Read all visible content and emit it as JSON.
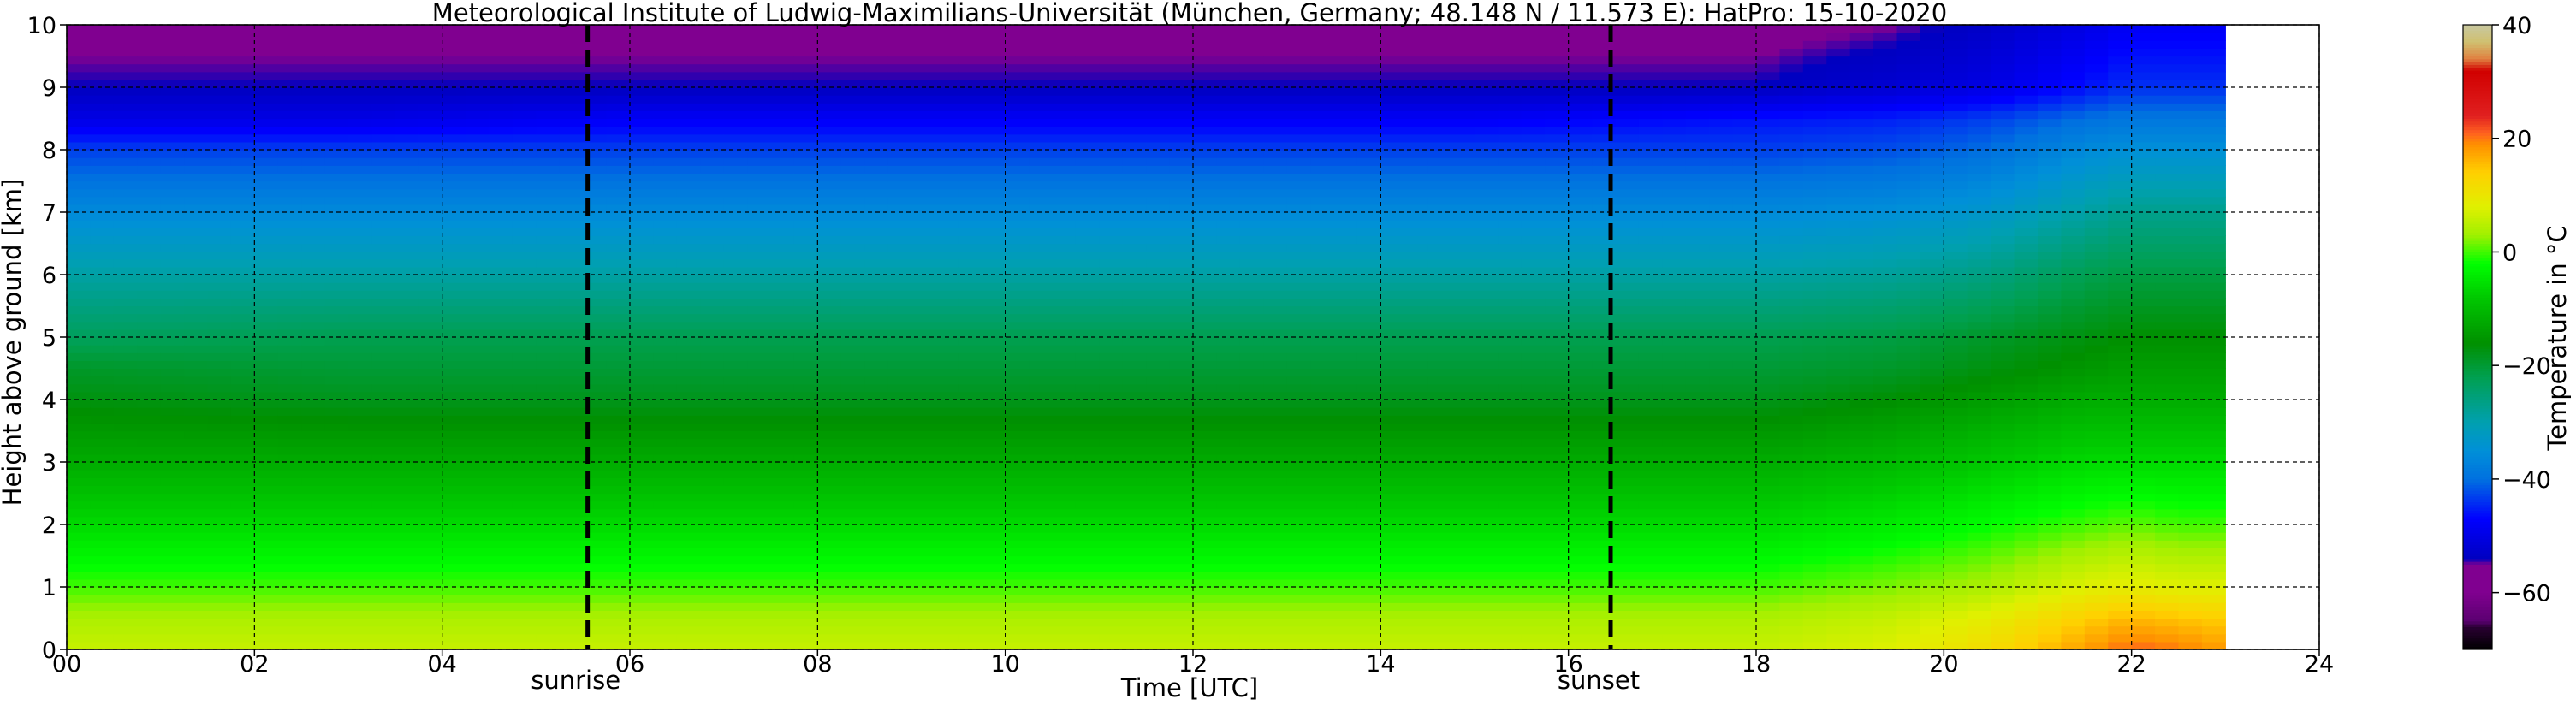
{
  "chart_data": {
    "type": "heatmap",
    "title": "Meteorological Institute of Ludwig-Maximilians-Universität (München, Germany; 48.148 N / 11.573 E):    HatPro: 15-10-2020",
    "xlabel": "Time [UTC]",
    "ylabel": "Height above ground [km]",
    "xlim": [
      0,
      24
    ],
    "ylim": [
      0,
      10
    ],
    "x_ticks": [
      0,
      2,
      4,
      6,
      8,
      10,
      12,
      14,
      16,
      18,
      20,
      22,
      24
    ],
    "x_tick_labels": [
      "00",
      "02",
      "04",
      "06",
      "08",
      "10",
      "12",
      "14",
      "16",
      "18",
      "20",
      "22",
      "24"
    ],
    "y_ticks": [
      0,
      1,
      2,
      3,
      4,
      5,
      6,
      7,
      8,
      9,
      10
    ],
    "y_tick_labels": [
      "0",
      "1",
      "2",
      "3",
      "4",
      "5",
      "6",
      "7",
      "8",
      "9",
      "10"
    ],
    "grid": true,
    "data_x_end": 23.0,
    "events": [
      {
        "label": "sunrise",
        "time": 5.55
      },
      {
        "label": "sunset",
        "time": 16.45
      }
    ],
    "colorbar": {
      "label": "Temperature in °C",
      "min": -70,
      "max": 40,
      "ticks": [
        -60,
        -40,
        -20,
        0,
        20,
        40
      ],
      "tick_labels": [
        "−60",
        "−40",
        "−20",
        "0",
        "20",
        "40"
      ],
      "color_stops": [
        {
          "value": -70,
          "color": "#000000"
        },
        {
          "value": -66,
          "color": "#2a0033"
        },
        {
          "value": -65,
          "color": "#5a0070"
        },
        {
          "value": -60,
          "color": "#800090"
        },
        {
          "value": -55,
          "color": "#800090"
        },
        {
          "value": -54,
          "color": "#0000c0"
        },
        {
          "value": -47,
          "color": "#0000ff"
        },
        {
          "value": -40,
          "color": "#0070e0"
        },
        {
          "value": -35,
          "color": "#0090d8"
        },
        {
          "value": -30,
          "color": "#00a0b0"
        },
        {
          "value": -22,
          "color": "#00a050"
        },
        {
          "value": -16,
          "color": "#009000"
        },
        {
          "value": -8,
          "color": "#00c800"
        },
        {
          "value": -2,
          "color": "#00ff00"
        },
        {
          "value": 3,
          "color": "#a0f000"
        },
        {
          "value": 8,
          "color": "#e0f000"
        },
        {
          "value": 14,
          "color": "#ffd000"
        },
        {
          "value": 19,
          "color": "#ff9000"
        },
        {
          "value": 21,
          "color": "#ff6020"
        },
        {
          "value": 24,
          "color": "#e02020"
        },
        {
          "value": 32,
          "color": "#d00000"
        },
        {
          "value": 34,
          "color": "#e08040"
        },
        {
          "value": 37,
          "color": "#d0c070"
        },
        {
          "value": 40,
          "color": "#c8c8a0"
        }
      ]
    },
    "temperature_grid": {
      "times": [
        0,
        3,
        6,
        9,
        12,
        15,
        18,
        19.5,
        20.5,
        21.5,
        22,
        22.5,
        23
      ],
      "heights": [
        0,
        0.5,
        1,
        1.5,
        2,
        3,
        4,
        4.5,
        5,
        6,
        7,
        8,
        8.5,
        9,
        10
      ],
      "values": [
        [
          6,
          6,
          6,
          6,
          6,
          6,
          6,
          8,
          12,
          18,
          21,
          20,
          18
        ],
        [
          4,
          4,
          4,
          4,
          4,
          4,
          4,
          6,
          9,
          14,
          16,
          15,
          14
        ],
        [
          0,
          0,
          0,
          0,
          0,
          0,
          0,
          2,
          4,
          8,
          9,
          8,
          8
        ],
        [
          -3,
          -3,
          -3,
          -3,
          -3,
          -3,
          -3,
          -1,
          1,
          4,
          5,
          4,
          4
        ],
        [
          -6,
          -6,
          -6,
          -6,
          -6,
          -6,
          -6,
          -4,
          -2,
          0,
          1,
          0,
          0
        ],
        [
          -12,
          -12,
          -12,
          -12,
          -12,
          -12,
          -12,
          -10,
          -8,
          -6,
          -6,
          -6,
          -6
        ],
        [
          -17,
          -18,
          -18,
          -18,
          -18,
          -18,
          -18,
          -16,
          -14,
          -12,
          -12,
          -12,
          -12
        ],
        [
          -19,
          -20,
          -20,
          -20,
          -20,
          -20,
          -20,
          -19,
          -17,
          -15,
          -14,
          -14,
          -14
        ],
        [
          -23,
          -22,
          -22,
          -22,
          -22,
          -22,
          -22,
          -21,
          -19,
          -17,
          -16,
          -16,
          -16
        ],
        [
          -29,
          -29,
          -29,
          -29,
          -29,
          -29,
          -29,
          -28,
          -26,
          -22,
          -21,
          -21,
          -21
        ],
        [
          -36,
          -36,
          -36,
          -36,
          -36,
          -36,
          -36,
          -35,
          -33,
          -29,
          -27,
          -27,
          -27
        ],
        [
          -43,
          -43,
          -43,
          -43,
          -43,
          -43,
          -43,
          -42,
          -40,
          -36,
          -35,
          -35,
          -35
        ],
        [
          -50,
          -50,
          -48,
          -48,
          -48,
          -48,
          -46,
          -45,
          -43,
          -40,
          -39,
          -39,
          -39
        ],
        [
          -54,
          -54,
          -54,
          -54,
          -54,
          -54,
          -54,
          -52,
          -50,
          -46,
          -44,
          -44,
          -44
        ],
        [
          -56,
          -56,
          -56,
          -56,
          -56,
          -56,
          -56,
          -55,
          -53,
          -50,
          -48,
          -48,
          -48
        ]
      ]
    }
  }
}
